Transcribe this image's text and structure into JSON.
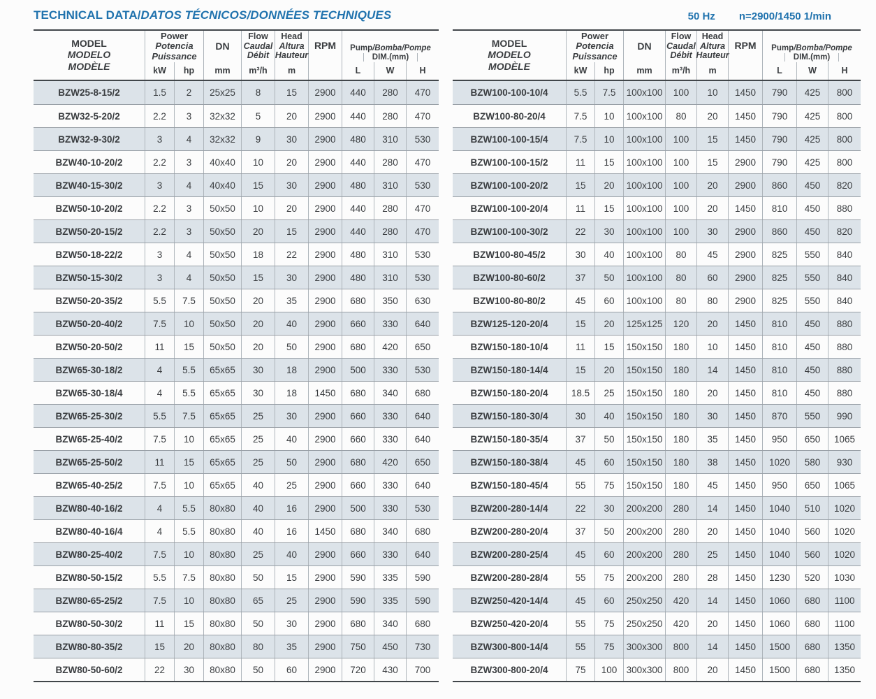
{
  "page": {
    "title_en": "TECHNICAL DATA/",
    "title_intl": "DATOS TÉCNICOS/DONNÉES TECHNIQUES",
    "frequency": "50 Hz",
    "speed": "n=2900/1450 1/min"
  },
  "colors": {
    "accent_blue": "#2173ae",
    "row_shade": "#dce3e9",
    "dark_line": "#41464a",
    "grid_line": "#aeb5bb",
    "text": "#3a3d40"
  },
  "header": {
    "model_lines": [
      "MODEL",
      "MODELO",
      "MODÈLE"
    ],
    "power_lines": [
      "Power",
      "Potencia",
      "Puissance"
    ],
    "dn_label": "DN",
    "flow_lines": [
      "Flow",
      "Caudal",
      "Débit"
    ],
    "head_lines": [
      "Head",
      "Altura",
      "Hauteur"
    ],
    "rpm_label": "RPM",
    "pump_dim_en": "Pump",
    "pump_dim_intl": "/Bomba/Pompe",
    "pump_dim_sub": "DIM.(mm)",
    "units": {
      "kw": "kW",
      "hp": "hp",
      "mm": "mm",
      "flow": "m³/h",
      "head": "m",
      "l": "L",
      "w": "W",
      "h": "H"
    }
  },
  "columns_order": [
    "model",
    "power_kw",
    "power_hp",
    "dn_mm",
    "flow_m3h",
    "head_m",
    "rpm",
    "dim_l",
    "dim_w",
    "dim_h"
  ],
  "left_table": {
    "rows": [
      [
        "BZW25-8-15/2",
        "1.5",
        "2",
        "25x25",
        "8",
        "15",
        "2900",
        "440",
        "280",
        "470"
      ],
      [
        "BZW32-5-20/2",
        "2.2",
        "3",
        "32x32",
        "5",
        "20",
        "2900",
        "440",
        "280",
        "470"
      ],
      [
        "BZW32-9-30/2",
        "3",
        "4",
        "32x32",
        "9",
        "30",
        "2900",
        "480",
        "310",
        "530"
      ],
      [
        "BZW40-10-20/2",
        "2.2",
        "3",
        "40x40",
        "10",
        "20",
        "2900",
        "440",
        "280",
        "470"
      ],
      [
        "BZW40-15-30/2",
        "3",
        "4",
        "40x40",
        "15",
        "30",
        "2900",
        "480",
        "310",
        "530"
      ],
      [
        "BZW50-10-20/2",
        "2.2",
        "3",
        "50x50",
        "10",
        "20",
        "2900",
        "440",
        "280",
        "470"
      ],
      [
        "BZW50-20-15/2",
        "2.2",
        "3",
        "50x50",
        "20",
        "15",
        "2900",
        "440",
        "280",
        "470"
      ],
      [
        "BZW50-18-22/2",
        "3",
        "4",
        "50x50",
        "18",
        "22",
        "2900",
        "480",
        "310",
        "530"
      ],
      [
        "BZW50-15-30/2",
        "3",
        "4",
        "50x50",
        "15",
        "30",
        "2900",
        "480",
        "310",
        "530"
      ],
      [
        "BZW50-20-35/2",
        "5.5",
        "7.5",
        "50x50",
        "20",
        "35",
        "2900",
        "680",
        "350",
        "630"
      ],
      [
        "BZW50-20-40/2",
        "7.5",
        "10",
        "50x50",
        "20",
        "40",
        "2900",
        "660",
        "330",
        "640"
      ],
      [
        "BZW50-20-50/2",
        "11",
        "15",
        "50x50",
        "20",
        "50",
        "2900",
        "680",
        "420",
        "650"
      ],
      [
        "BZW65-30-18/2",
        "4",
        "5.5",
        "65x65",
        "30",
        "18",
        "2900",
        "500",
        "330",
        "530"
      ],
      [
        "BZW65-30-18/4",
        "4",
        "5.5",
        "65x65",
        "30",
        "18",
        "1450",
        "680",
        "340",
        "680"
      ],
      [
        "BZW65-25-30/2",
        "5.5",
        "7.5",
        "65x65",
        "25",
        "30",
        "2900",
        "660",
        "330",
        "640"
      ],
      [
        "BZW65-25-40/2",
        "7.5",
        "10",
        "65x65",
        "25",
        "40",
        "2900",
        "660",
        "330",
        "640"
      ],
      [
        "BZW65-25-50/2",
        "11",
        "15",
        "65x65",
        "25",
        "50",
        "2900",
        "680",
        "420",
        "650"
      ],
      [
        "BZW65-40-25/2",
        "7.5",
        "10",
        "65x65",
        "40",
        "25",
        "2900",
        "660",
        "330",
        "640"
      ],
      [
        "BZW80-40-16/2",
        "4",
        "5.5",
        "80x80",
        "40",
        "16",
        "2900",
        "500",
        "330",
        "530"
      ],
      [
        "BZW80-40-16/4",
        "4",
        "5.5",
        "80x80",
        "40",
        "16",
        "1450",
        "680",
        "340",
        "680"
      ],
      [
        "BZW80-25-40/2",
        "7.5",
        "10",
        "80x80",
        "25",
        "40",
        "2900",
        "660",
        "330",
        "640"
      ],
      [
        "BZW80-50-15/2",
        "5.5",
        "7.5",
        "80x80",
        "50",
        "15",
        "2900",
        "590",
        "335",
        "590"
      ],
      [
        "BZW80-65-25/2",
        "7.5",
        "10",
        "80x80",
        "65",
        "25",
        "2900",
        "590",
        "335",
        "590"
      ],
      [
        "BZW80-50-30/2",
        "11",
        "15",
        "80x80",
        "50",
        "30",
        "2900",
        "680",
        "340",
        "680"
      ],
      [
        "BZW80-80-35/2",
        "15",
        "20",
        "80x80",
        "80",
        "35",
        "2900",
        "750",
        "450",
        "730"
      ],
      [
        "BZW80-50-60/2",
        "22",
        "30",
        "80x80",
        "50",
        "60",
        "2900",
        "720",
        "430",
        "700"
      ]
    ]
  },
  "right_table": {
    "rows": [
      [
        "BZW100-100-10/4",
        "5.5",
        "7.5",
        "100x100",
        "100",
        "10",
        "1450",
        "790",
        "425",
        "800"
      ],
      [
        "BZW100-80-20/4",
        "7.5",
        "10",
        "100x100",
        "80",
        "20",
        "1450",
        "790",
        "425",
        "800"
      ],
      [
        "BZW100-100-15/4",
        "7.5",
        "10",
        "100x100",
        "100",
        "15",
        "1450",
        "790",
        "425",
        "800"
      ],
      [
        "BZW100-100-15/2",
        "11",
        "15",
        "100x100",
        "100",
        "15",
        "2900",
        "790",
        "425",
        "800"
      ],
      [
        "BZW100-100-20/2",
        "15",
        "20",
        "100x100",
        "100",
        "20",
        "2900",
        "860",
        "450",
        "820"
      ],
      [
        "BZW100-100-20/4",
        "11",
        "15",
        "100x100",
        "100",
        "20",
        "1450",
        "810",
        "450",
        "880"
      ],
      [
        "BZW100-100-30/2",
        "22",
        "30",
        "100x100",
        "100",
        "30",
        "2900",
        "860",
        "450",
        "820"
      ],
      [
        "BZW100-80-45/2",
        "30",
        "40",
        "100x100",
        "80",
        "45",
        "2900",
        "825",
        "550",
        "840"
      ],
      [
        "BZW100-80-60/2",
        "37",
        "50",
        "100x100",
        "80",
        "60",
        "2900",
        "825",
        "550",
        "840"
      ],
      [
        "BZW100-80-80/2",
        "45",
        "60",
        "100x100",
        "80",
        "80",
        "2900",
        "825",
        "550",
        "840"
      ],
      [
        "BZW125-120-20/4",
        "15",
        "20",
        "125x125",
        "120",
        "20",
        "1450",
        "810",
        "450",
        "880"
      ],
      [
        "BZW150-180-10/4",
        "11",
        "15",
        "150x150",
        "180",
        "10",
        "1450",
        "810",
        "450",
        "880"
      ],
      [
        "BZW150-180-14/4",
        "15",
        "20",
        "150x150",
        "180",
        "14",
        "1450",
        "810",
        "450",
        "880"
      ],
      [
        "BZW150-180-20/4",
        "18.5",
        "25",
        "150x150",
        "180",
        "20",
        "1450",
        "810",
        "450",
        "880"
      ],
      [
        "BZW150-180-30/4",
        "30",
        "40",
        "150x150",
        "180",
        "30",
        "1450",
        "870",
        "550",
        "990"
      ],
      [
        "BZW150-180-35/4",
        "37",
        "50",
        "150x150",
        "180",
        "35",
        "1450",
        "950",
        "650",
        "1065"
      ],
      [
        "BZW150-180-38/4",
        "45",
        "60",
        "150x150",
        "180",
        "38",
        "1450",
        "1020",
        "580",
        "930"
      ],
      [
        "BZW150-180-45/4",
        "55",
        "75",
        "150x150",
        "180",
        "45",
        "1450",
        "950",
        "650",
        "1065"
      ],
      [
        "BZW200-280-14/4",
        "22",
        "30",
        "200x200",
        "280",
        "14",
        "1450",
        "1040",
        "510",
        "1020"
      ],
      [
        "BZW200-280-20/4",
        "37",
        "50",
        "200x200",
        "280",
        "20",
        "1450",
        "1040",
        "560",
        "1020"
      ],
      [
        "BZW200-280-25/4",
        "45",
        "60",
        "200x200",
        "280",
        "25",
        "1450",
        "1040",
        "560",
        "1020"
      ],
      [
        "BZW200-280-28/4",
        "55",
        "75",
        "200x200",
        "280",
        "28",
        "1450",
        "1230",
        "520",
        "1030"
      ],
      [
        "BZW250-420-14/4",
        "45",
        "60",
        "250x250",
        "420",
        "14",
        "1450",
        "1060",
        "680",
        "1100"
      ],
      [
        "BZW250-420-20/4",
        "55",
        "75",
        "250x250",
        "420",
        "20",
        "1450",
        "1060",
        "680",
        "1100"
      ],
      [
        "BZW300-800-14/4",
        "55",
        "75",
        "300x300",
        "800",
        "14",
        "1450",
        "1500",
        "680",
        "1350"
      ],
      [
        "BZW300-800-20/4",
        "75",
        "100",
        "300x300",
        "800",
        "20",
        "1450",
        "1500",
        "680",
        "1350"
      ]
    ]
  }
}
